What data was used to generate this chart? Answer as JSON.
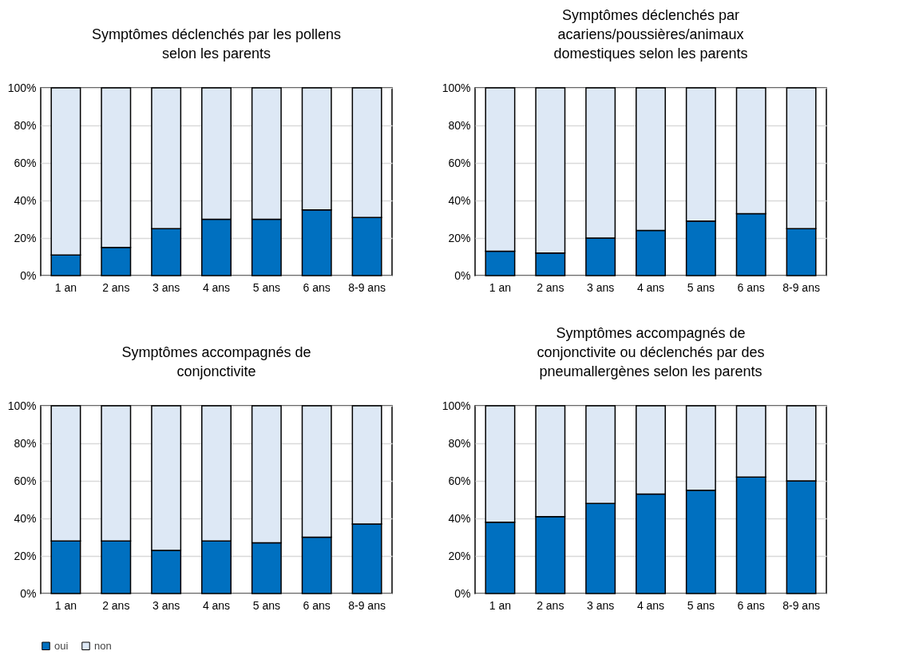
{
  "chart_data": [
    {
      "type": "bar",
      "title": "Symptômes déclenchés par les pollens selon les parents",
      "stacked": true,
      "categories": [
        "1 an",
        "2 ans",
        "3 ans",
        "4 ans",
        "5 ans",
        "6 ans",
        "8-9 ans"
      ],
      "series": [
        {
          "name": "oui",
          "color": "#0070c0",
          "values": [
            11,
            15,
            25,
            30,
            30,
            35,
            31
          ]
        },
        {
          "name": "non",
          "color": "#dde8f5",
          "values": [
            89,
            85,
            75,
            70,
            70,
            65,
            69
          ]
        }
      ],
      "ylim": [
        0,
        100
      ],
      "yticks": [
        {
          "value": 0,
          "label": "0%"
        },
        {
          "value": 20,
          "label": "20%"
        },
        {
          "value": 40,
          "label": "40%"
        },
        {
          "value": 60,
          "label": "60%"
        },
        {
          "value": 80,
          "label": "80%"
        },
        {
          "value": 100,
          "label": "100%"
        }
      ],
      "grid": "y",
      "legend": "bottom"
    },
    {
      "type": "bar",
      "title": "Symptômes déclenchés par acariens/poussières/animaux domestiques selon les parents",
      "stacked": true,
      "categories": [
        "1 an",
        "2 ans",
        "3 ans",
        "4 ans",
        "5 ans",
        "6 ans",
        "8-9 ans"
      ],
      "series": [
        {
          "name": "oui",
          "color": "#0070c0",
          "values": [
            13,
            12,
            20,
            24,
            29,
            33,
            25
          ]
        },
        {
          "name": "non",
          "color": "#dde8f5",
          "values": [
            87,
            88,
            80,
            76,
            71,
            67,
            75
          ]
        }
      ],
      "ylim": [
        0,
        100
      ],
      "yticks": [
        {
          "value": 0,
          "label": "0%"
        },
        {
          "value": 20,
          "label": "20%"
        },
        {
          "value": 40,
          "label": "40%"
        },
        {
          "value": 60,
          "label": "60%"
        },
        {
          "value": 80,
          "label": "80%"
        },
        {
          "value": 100,
          "label": "100%"
        }
      ],
      "grid": "y",
      "legend": "bottom"
    },
    {
      "type": "bar",
      "title": "Symptômes accompagnés de conjonctivite",
      "stacked": true,
      "categories": [
        "1 an",
        "2 ans",
        "3 ans",
        "4 ans",
        "5 ans",
        "6 ans",
        "8-9 ans"
      ],
      "series": [
        {
          "name": "oui",
          "color": "#0070c0",
          "values": [
            28,
            28,
            23,
            28,
            27,
            30,
            37
          ]
        },
        {
          "name": "non",
          "color": "#dde8f5",
          "values": [
            72,
            72,
            77,
            72,
            73,
            70,
            63
          ]
        }
      ],
      "ylim": [
        0,
        100
      ],
      "yticks": [
        {
          "value": 0,
          "label": "0%"
        },
        {
          "value": 20,
          "label": "20%"
        },
        {
          "value": 40,
          "label": "40%"
        },
        {
          "value": 60,
          "label": "60%"
        },
        {
          "value": 80,
          "label": "80%"
        },
        {
          "value": 100,
          "label": "100%"
        }
      ],
      "grid": "y",
      "legend": "bottom"
    },
    {
      "type": "bar",
      "title": "Symptômes accompagnés de conjonctivite ou déclenchés par des pneumallergènes selon les parents",
      "stacked": true,
      "categories": [
        "1 an",
        "2 ans",
        "3 ans",
        "4 ans",
        "5 ans",
        "6 ans",
        "8-9 ans"
      ],
      "series": [
        {
          "name": "oui",
          "color": "#0070c0",
          "values": [
            38,
            41,
            48,
            53,
            55,
            62,
            60
          ]
        },
        {
          "name": "non",
          "color": "#dde8f5",
          "values": [
            62,
            59,
            52,
            47,
            45,
            38,
            40
          ]
        }
      ],
      "ylim": [
        0,
        100
      ],
      "yticks": [
        {
          "value": 0,
          "label": "0%"
        },
        {
          "value": 20,
          "label": "20%"
        },
        {
          "value": 40,
          "label": "40%"
        },
        {
          "value": 60,
          "label": "60%"
        },
        {
          "value": 80,
          "label": "80%"
        },
        {
          "value": 100,
          "label": "100%"
        }
      ],
      "grid": "y",
      "legend": "bottom"
    }
  ]
}
